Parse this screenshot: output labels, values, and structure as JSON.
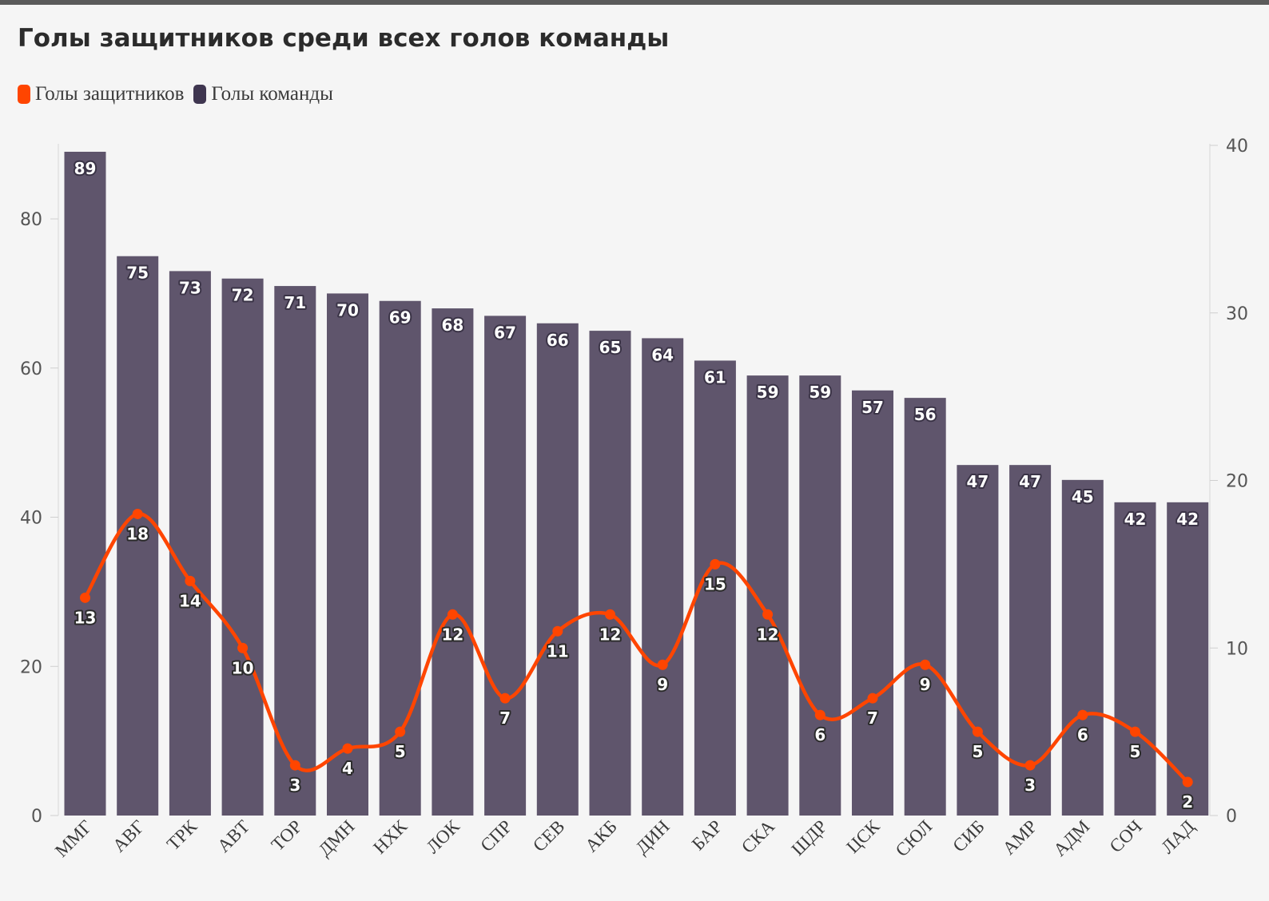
{
  "title": "Голы защитников среди всех голов команды",
  "legend": {
    "items": [
      {
        "label": "Голы защитников",
        "color": "#ff4500"
      },
      {
        "label": "Голы команды",
        "color": "#3f3650"
      }
    ]
  },
  "chart_data": {
    "type": "bar+line",
    "title": "Голы защитников среди всех голов команды",
    "categories": [
      "ММГ",
      "АВГ",
      "ТРК",
      "АВТ",
      "ТОР",
      "ДМН",
      "НХК",
      "ЛОК",
      "СПР",
      "СЕВ",
      "АКБ",
      "ДИН",
      "БАР",
      "СКА",
      "ШДР",
      "ЦСК",
      "СЮЛ",
      "СИБ",
      "АМР",
      "АДМ",
      "СОЧ",
      "ЛАД"
    ],
    "series": [
      {
        "name": "Голы команды",
        "type": "bar",
        "axis": "left",
        "color": "#5f556c",
        "values": [
          89,
          75,
          73,
          72,
          71,
          70,
          69,
          68,
          67,
          66,
          65,
          64,
          61,
          59,
          59,
          57,
          56,
          47,
          47,
          45,
          42,
          42
        ]
      },
      {
        "name": "Голы защитников",
        "type": "line",
        "axis": "right",
        "color": "#ff4500",
        "values": [
          13,
          18,
          14,
          10,
          3,
          4,
          5,
          12,
          7,
          11,
          12,
          9,
          15,
          12,
          6,
          7,
          9,
          5,
          3,
          6,
          5,
          2
        ]
      }
    ],
    "left_axis": {
      "ylim": [
        0,
        89
      ],
      "ticks": [
        0,
        20,
        40,
        60,
        80
      ]
    },
    "right_axis": {
      "ylim": [
        0,
        40
      ],
      "ticks": [
        0,
        10,
        20,
        30,
        40
      ]
    },
    "legend_position": "top-left"
  }
}
